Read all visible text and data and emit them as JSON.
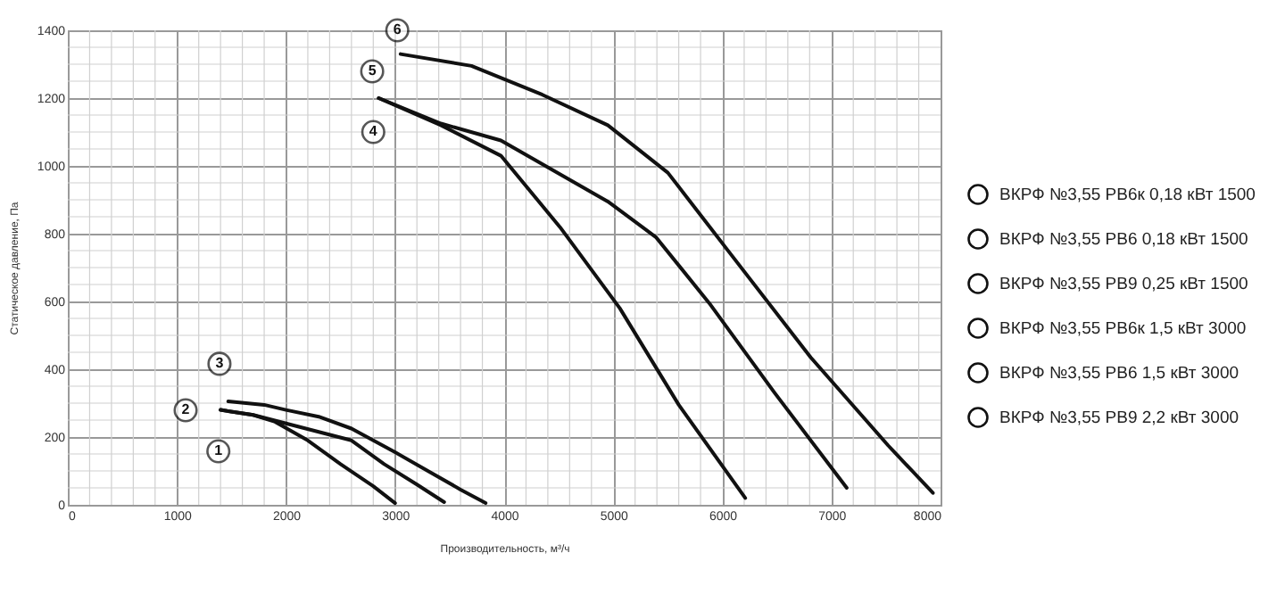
{
  "chart_data": {
    "type": "line",
    "xlabel": "Производительность, м³/ч",
    "ylabel": "Статическое давление, Па",
    "xlim": [
      0,
      8000
    ],
    "xticks": [
      0,
      1000,
      2000,
      3000,
      4000,
      5000,
      6000,
      7000,
      8000
    ],
    "ylim": [
      0,
      1400
    ],
    "yticks": [
      0,
      200,
      400,
      600,
      800,
      1000,
      1200,
      1400
    ],
    "grid": true,
    "legend": "right",
    "marker": "none",
    "line_style": "solid",
    "series": [
      {
        "name": "ВКРФ №3,55 РВ6к 0,18 кВт 1500",
        "color": "#111111",
        "x": [
          1400,
          1700,
          1900,
          2200,
          2500,
          2800,
          3000
        ],
        "values": [
          280,
          265,
          245,
          190,
          120,
          55,
          5
        ]
      },
      {
        "name": "ВКРФ №3,55 РВ6 0,18 кВт 1500",
        "color": "#111111",
        "x": [
          1400,
          1700,
          2000,
          2300,
          2600,
          2900,
          3200,
          3450
        ],
        "values": [
          280,
          265,
          240,
          215,
          190,
          120,
          60,
          8
        ]
      },
      {
        "name": "ВКРФ №3,55 РВ9 0,25 кВт 1500",
        "color": "#111111",
        "x": [
          1470,
          1800,
          2000,
          2300,
          2600,
          2800,
          3000,
          3300,
          3600,
          3830
        ],
        "values": [
          305,
          295,
          280,
          260,
          225,
          190,
          155,
          100,
          45,
          5
        ]
      },
      {
        "name": "ВКРФ №3,55 РВ6к 1,5 кВт 3000",
        "color": "#111111",
        "x": [
          2850,
          3420,
          3970,
          4510,
          5060,
          5600,
          6210
        ],
        "values": [
          1200,
          1120,
          1030,
          820,
          580,
          295,
          20
        ]
      },
      {
        "name": "ВКРФ №3,55 РВ6 1,5 кВт 3000",
        "color": "#111111",
        "x": [
          2850,
          3420,
          3970,
          4950,
          5390,
          5880,
          6480,
          7140
        ],
        "values": [
          1200,
          1125,
          1075,
          895,
          790,
          595,
          330,
          50
        ]
      },
      {
        "name": "ВКРФ №3,55 РВ9 2,2 кВт 3000",
        "color": "#111111",
        "x": [
          3050,
          3700,
          4350,
          4950,
          5500,
          6040,
          6810,
          7520,
          7930
        ],
        "values": [
          1330,
          1295,
          1210,
          1120,
          980,
          755,
          435,
          175,
          35
        ]
      }
    ],
    "annotations": [
      {
        "text": "1",
        "x": 1380,
        "y": 158
      },
      {
        "text": "2",
        "x": 1080,
        "y": 279
      },
      {
        "text": "3",
        "x": 1390,
        "y": 416
      },
      {
        "text": "4",
        "x": 2800,
        "y": 1100
      },
      {
        "text": "5",
        "x": 2790,
        "y": 1279
      },
      {
        "text": "6",
        "x": 3020,
        "y": 1400
      }
    ]
  }
}
